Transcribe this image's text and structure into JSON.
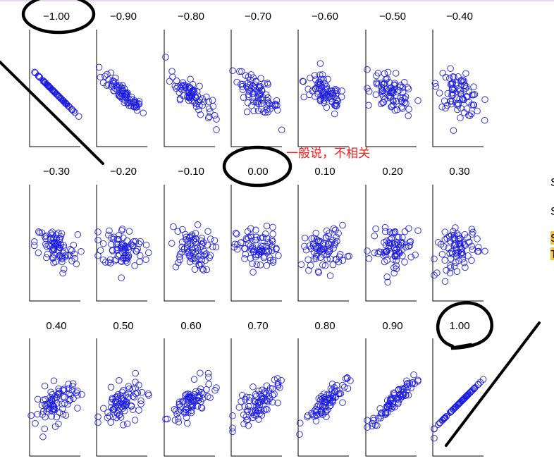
{
  "chart_data": {
    "type": "scatter",
    "title": "",
    "grid": false,
    "axis_style": "left and bottom axis lines only, no tick labels",
    "marker": "open circle",
    "marker_color": "#1f1fe0",
    "panels": [
      {
        "label": "−1.00",
        "r": -1.0
      },
      {
        "label": "−0.90",
        "r": -0.9
      },
      {
        "label": "−0.80",
        "r": -0.8
      },
      {
        "label": "−0.70",
        "r": -0.7
      },
      {
        "label": "−0.60",
        "r": -0.6
      },
      {
        "label": "−0.50",
        "r": -0.5
      },
      {
        "label": "−0.40",
        "r": -0.4
      },
      {
        "label": "−0.30",
        "r": -0.3
      },
      {
        "label": "−0.20",
        "r": -0.2
      },
      {
        "label": "−0.10",
        "r": -0.1
      },
      {
        "label": "0.00",
        "r": 0.0
      },
      {
        "label": "0.10",
        "r": 0.1
      },
      {
        "label": "0.20",
        "r": 0.2
      },
      {
        "label": "0.30",
        "r": 0.3
      },
      {
        "label": "0.40",
        "r": 0.4
      },
      {
        "label": "0.50",
        "r": 0.5
      },
      {
        "label": "0.60",
        "r": 0.6
      },
      {
        "label": "0.70",
        "r": 0.7
      },
      {
        "label": "0.80",
        "r": 0.8
      },
      {
        "label": "0.90",
        "r": 0.9
      },
      {
        "label": "1.00",
        "r": 1.0
      }
    ],
    "annotations": [
      {
        "text": "一般说，不相关",
        "color": "#ff1a1a",
        "near": "0.00"
      }
    ],
    "highlighted_panels": [
      "−1.00",
      "0.00",
      "1.00"
    ]
  },
  "right_edge": {
    "highlight_color": "#f7c23a",
    "chars": [
      "S",
      "S",
      "S",
      "T"
    ]
  }
}
